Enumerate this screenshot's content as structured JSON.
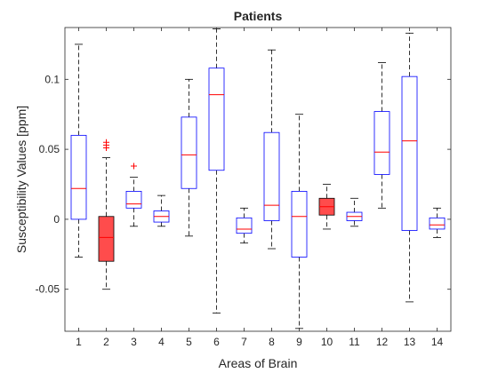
{
  "chart_data": {
    "type": "box",
    "title": "Patients",
    "xlabel": "Areas of Brain",
    "ylabel": "Susceptibility Values [ppm]",
    "ylim": [
      -0.08,
      0.137
    ],
    "xlim": [
      0.5,
      14.5
    ],
    "categories": [
      "1",
      "2",
      "3",
      "4",
      "5",
      "6",
      "7",
      "8",
      "9",
      "10",
      "11",
      "12",
      "13",
      "14"
    ],
    "yticks": [
      -0.05,
      0,
      0.05,
      0.1
    ],
    "ytick_labels": [
      "-0.05",
      "0",
      "0.05",
      "0.1"
    ],
    "grid": false,
    "boxes": [
      {
        "category": "1",
        "whisker_low": -0.027,
        "q1": 0.0,
        "median": 0.022,
        "q3": 0.06,
        "whisker_high": 0.125,
        "outliers": [],
        "filled": false
      },
      {
        "category": "2",
        "whisker_low": -0.05,
        "q1": -0.03,
        "median": -0.013,
        "q3": 0.002,
        "whisker_high": 0.044,
        "outliers": [
          0.051,
          0.053,
          0.055
        ],
        "filled": true
      },
      {
        "category": "3",
        "whisker_low": -0.005,
        "q1": 0.008,
        "median": 0.011,
        "q3": 0.02,
        "whisker_high": 0.03,
        "outliers": [
          0.038
        ],
        "filled": false
      },
      {
        "category": "4",
        "whisker_low": -0.005,
        "q1": -0.002,
        "median": 0.002,
        "q3": 0.006,
        "whisker_high": 0.017,
        "outliers": [],
        "filled": false
      },
      {
        "category": "5",
        "whisker_low": -0.012,
        "q1": 0.022,
        "median": 0.046,
        "q3": 0.073,
        "whisker_high": 0.1,
        "outliers": [],
        "filled": false
      },
      {
        "category": "6",
        "whisker_low": -0.067,
        "q1": 0.035,
        "median": 0.089,
        "q3": 0.108,
        "whisker_high": 0.136,
        "outliers": [],
        "filled": false
      },
      {
        "category": "7",
        "whisker_low": -0.017,
        "q1": -0.01,
        "median": -0.007,
        "q3": 0.001,
        "whisker_high": 0.008,
        "outliers": [],
        "filled": false
      },
      {
        "category": "8",
        "whisker_low": -0.021,
        "q1": -0.001,
        "median": 0.01,
        "q3": 0.062,
        "whisker_high": 0.121,
        "outliers": [],
        "filled": false
      },
      {
        "category": "9",
        "whisker_low": -0.078,
        "q1": -0.027,
        "median": 0.002,
        "q3": 0.02,
        "whisker_high": 0.075,
        "outliers": [],
        "filled": false
      },
      {
        "category": "10",
        "whisker_low": -0.007,
        "q1": 0.003,
        "median": 0.009,
        "q3": 0.015,
        "whisker_high": 0.025,
        "outliers": [],
        "filled": true
      },
      {
        "category": "11",
        "whisker_low": -0.005,
        "q1": -0.001,
        "median": 0.002,
        "q3": 0.005,
        "whisker_high": 0.015,
        "outliers": [],
        "filled": false
      },
      {
        "category": "12",
        "whisker_low": 0.008,
        "q1": 0.032,
        "median": 0.048,
        "q3": 0.077,
        "whisker_high": 0.112,
        "outliers": [],
        "filled": false
      },
      {
        "category": "13",
        "whisker_low": -0.059,
        "q1": -0.008,
        "median": 0.056,
        "q3": 0.102,
        "whisker_high": 0.133,
        "outliers": [],
        "filled": false
      },
      {
        "category": "14",
        "whisker_low": -0.013,
        "q1": -0.007,
        "median": -0.004,
        "q3": 0.001,
        "whisker_high": 0.008,
        "outliers": [],
        "filled": false
      }
    ],
    "colors": {
      "box_edge": "#0000ff",
      "median": "#ff0000",
      "filled_box": "#ff4c4c",
      "filled_box_edge": "#000000",
      "whisker": "#000000",
      "outlier": "#ff0000",
      "axis": "#262626"
    }
  }
}
